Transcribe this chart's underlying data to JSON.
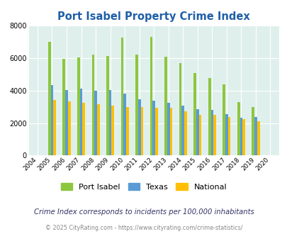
{
  "title": "Port Isabel Property Crime Index",
  "years": [
    2004,
    2005,
    2006,
    2007,
    2008,
    2009,
    2010,
    2011,
    2012,
    2013,
    2014,
    2015,
    2016,
    2017,
    2018,
    2019,
    2020
  ],
  "port_isabel": [
    0,
    7000,
    5950,
    6030,
    6230,
    6120,
    7250,
    6240,
    7300,
    6080,
    5680,
    5100,
    4780,
    4380,
    3290,
    2970,
    0
  ],
  "texas": [
    0,
    4330,
    4060,
    4130,
    4010,
    4050,
    3820,
    3490,
    3380,
    3270,
    3080,
    2870,
    2820,
    2570,
    2330,
    2360,
    0
  ],
  "national": [
    0,
    3430,
    3330,
    3260,
    3170,
    3070,
    2990,
    2980,
    2940,
    2940,
    2720,
    2520,
    2500,
    2360,
    2230,
    2110,
    0
  ],
  "port_isabel_color": "#8dc63f",
  "texas_color": "#5b9bd5",
  "national_color": "#ffc000",
  "bg_color": "#dff0ec",
  "title_color": "#1f5fa6",
  "subtitle": "Crime Index corresponds to incidents per 100,000 inhabitants",
  "footer": "© 2025 CityRating.com - https://www.cityrating.com/crime-statistics/",
  "ylim": [
    0,
    8000
  ],
  "yticks": [
    0,
    2000,
    4000,
    6000,
    8000
  ],
  "legend_labels": [
    "Port Isabel",
    "Texas",
    "National"
  ]
}
